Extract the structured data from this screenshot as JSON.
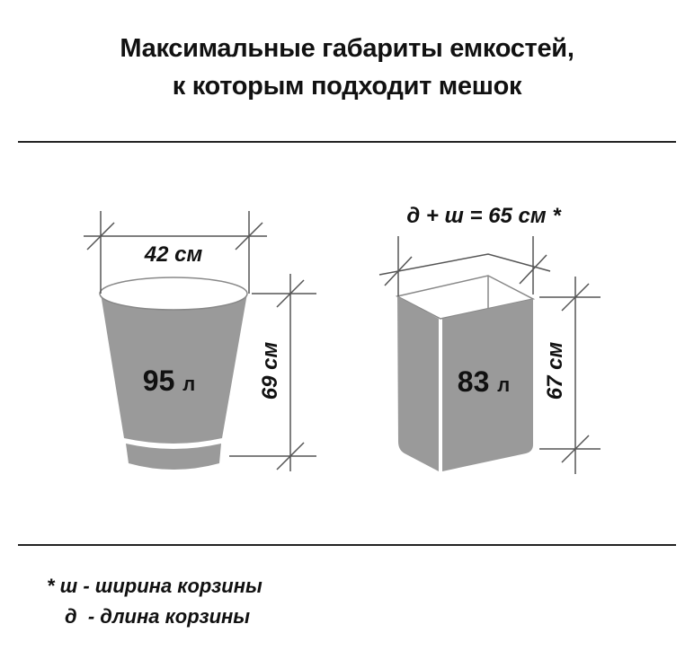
{
  "title": {
    "line1": "Максимальные габариты емкостей,",
    "line2": "к которым подходит мешок"
  },
  "round_bin": {
    "width": "42 см",
    "height": "69 см",
    "volume_number": "95",
    "volume_unit": "л"
  },
  "rect_bin": {
    "perimeter": "д + ш = 65 см *",
    "height": "67 см",
    "volume_number": "83",
    "volume_unit": "л"
  },
  "footnotes": [
    "* ш - ширина корзины",
    "д  - длина корзины"
  ],
  "colors": {
    "bin_fill": "#9a9a9a",
    "text": "#111111",
    "dim_lines": "#555555"
  }
}
